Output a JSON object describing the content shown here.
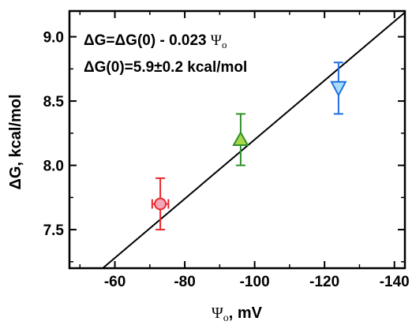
{
  "chart_data": {
    "type": "scatter",
    "xlabel": {
      "symbol": "Ψ",
      "subscript": "o",
      "rest": ", mV"
    },
    "ylabel": "ΔG, kcal/mol",
    "xlim": [
      -47,
      -143
    ],
    "ylim": [
      7.2,
      9.2
    ],
    "x_ticks": [
      -60,
      -80,
      -100,
      -120,
      -140
    ],
    "y_ticks": [
      7.5,
      8.0,
      8.5,
      9.0
    ],
    "x_tick_labels": [
      "-60",
      "-80",
      "-100",
      "-120",
      "-140"
    ],
    "y_tick_labels": [
      "7.5",
      "8.0",
      "8.5",
      "9.0"
    ],
    "grid": false,
    "annotations": [
      {
        "prefix": "ΔG=ΔG(0) - 0.023 ",
        "symbol": "Ψ",
        "subscript": "o"
      },
      {
        "prefix": "ΔG(0)=5.9±0.2 kcal/mol",
        "symbol": "",
        "subscript": ""
      }
    ],
    "points": [
      {
        "x": -73,
        "y": 7.7,
        "xerr": 3,
        "yerr": 0.2,
        "marker": "circle",
        "fill": "#f4a6b8",
        "stroke": "#e8282b"
      },
      {
        "x": -96,
        "y": 8.2,
        "xerr": 0,
        "yerr": 0.2,
        "marker": "triangle-up",
        "fill": "#a8d84a",
        "stroke": "#2f8f2a"
      },
      {
        "x": -124,
        "y": 8.6,
        "xerr": 0,
        "yerr": 0.2,
        "marker": "triangle-down",
        "fill": "#a8dcf8",
        "stroke": "#1c6fe0"
      }
    ],
    "fit_line": {
      "intercept": 5.9,
      "slope": -0.023,
      "color": "#000000"
    }
  }
}
